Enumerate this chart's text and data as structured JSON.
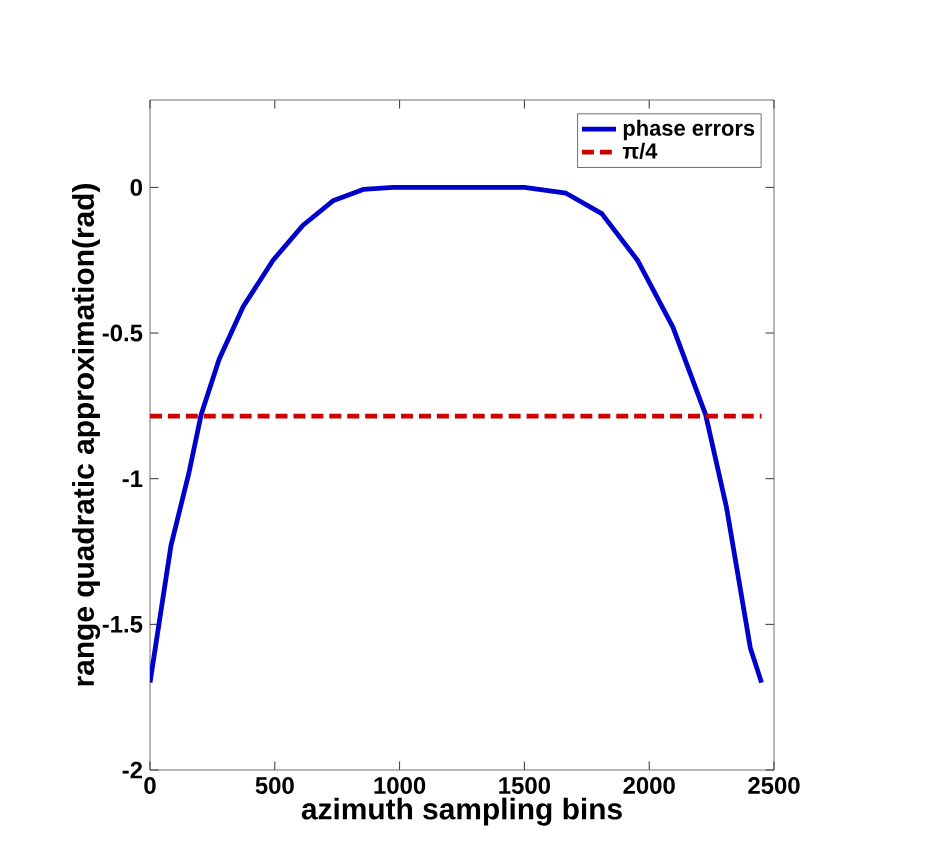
{
  "chart_data": {
    "type": "line",
    "xlabel": "azimuth sampling bins",
    "ylabel": "range quadratic approximation(rad)",
    "xlim": [
      0,
      2500
    ],
    "ylim": [
      -2,
      0.3
    ],
    "xticks": [
      0,
      500,
      1000,
      1500,
      2000,
      2500
    ],
    "yticks": [
      -2,
      -1.5,
      -1,
      -0.5,
      0
    ],
    "legend": "top right",
    "grid": false,
    "marker": "none",
    "series": [
      {
        "name": "phase errors",
        "color": "#0000cc",
        "line_style": "solid",
        "x": [
          0,
          84,
          156,
          205,
          277,
          373,
          493,
          613,
          733,
          854,
          974,
          1225,
          1500,
          1667,
          1810,
          1953,
          2095,
          2226,
          2310,
          2405,
          2450
        ],
        "values": [
          -1.7,
          -1.23,
          -0.98,
          -0.78,
          -0.59,
          -0.41,
          -0.25,
          -0.13,
          -0.046,
          -0.007,
          0,
          0,
          0,
          -0.02,
          -0.09,
          -0.25,
          -0.48,
          -0.78,
          -1.1,
          -1.58,
          -1.7
        ]
      },
      {
        "name": "π/4",
        "color": "#cc0000",
        "line_style": "dashed",
        "x": [
          0,
          2450
        ],
        "values": [
          -0.785,
          -0.785
        ]
      }
    ]
  }
}
